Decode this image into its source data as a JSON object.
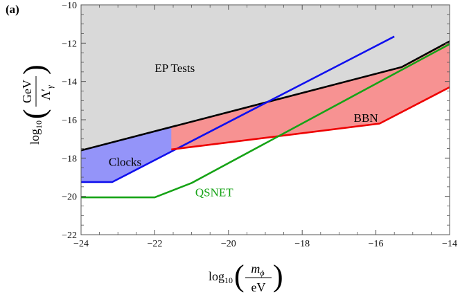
{
  "chart_data": {
    "type": "area",
    "panel_label": "(a)",
    "xlim": [
      -24,
      -14
    ],
    "ylim": [
      -22,
      -10
    ],
    "x_ticks": [
      -24,
      -22,
      -20,
      -18,
      -16,
      -14
    ],
    "x_tick_labels": [
      "−24",
      "−22",
      "−20",
      "−18",
      "−16",
      "−14"
    ],
    "y_ticks": [
      -22,
      -20,
      -18,
      -16,
      -14,
      -12,
      -10
    ],
    "y_tick_labels": [
      "−22",
      "−20",
      "−18",
      "−16",
      "−14",
      "−12",
      "−10"
    ],
    "xlabel": {
      "prefix": "log",
      "sub": "10",
      "numerator": "m",
      "numerator_sub": "ϕ",
      "denominator": "eV"
    },
    "ylabel": {
      "prefix": "log",
      "sub": "10",
      "numerator": "GeV",
      "denominator": "Λ′",
      "denominator_sub": "γ"
    },
    "regions": [
      {
        "name": "EP Tests",
        "fill": "#d9d9d9",
        "points": [
          [
            -24,
            -17.6
          ],
          [
            -15.3,
            -13.25
          ],
          [
            -14,
            -11.9
          ],
          [
            -14,
            -10
          ],
          [
            -24,
            -10
          ]
        ]
      },
      {
        "name": "Clocks",
        "fill": "#9494f9",
        "points": [
          [
            -24,
            -17.6
          ],
          [
            -21.55,
            -16.4
          ],
          [
            -19.0,
            -15.15
          ],
          [
            -23.15,
            -19.25
          ],
          [
            -24,
            -19.25
          ]
        ]
      },
      {
        "name": "BBN",
        "fill": "#f79292",
        "points": [
          [
            -21.55,
            -17.55
          ],
          [
            -21.55,
            -16.4
          ],
          [
            -19.0,
            -15.15
          ],
          [
            -15.3,
            -13.25
          ],
          [
            -14,
            -11.9
          ],
          [
            -14,
            -14.3
          ],
          [
            -15.9,
            -16.2
          ]
        ]
      }
    ],
    "series": [
      {
        "name": "EP Tests",
        "color": "#000000",
        "x": [
          -24,
          -15.3,
          -14
        ],
        "y": [
          -17.6,
          -13.25,
          -11.9
        ]
      },
      {
        "name": "Clocks",
        "color": "#1010ee",
        "x": [
          -24,
          -23.15,
          -15.5
        ],
        "y": [
          -19.25,
          -19.25,
          -11.65
        ]
      },
      {
        "name": "BBN",
        "color": "#ee0000",
        "x": [
          -21.55,
          -15.9,
          -14
        ],
        "y": [
          -17.55,
          -16.2,
          -14.3
        ]
      },
      {
        "name": "QSNET",
        "color": "#16a316",
        "x": [
          -24,
          -22,
          -21,
          -14
        ],
        "y": [
          -20.05,
          -20.05,
          -19.3,
          -12.05
        ]
      }
    ],
    "annotations": [
      {
        "text": "EP Tests",
        "x": -22.0,
        "y": -13.5,
        "color": "#000000"
      },
      {
        "text": "Clocks",
        "x": -23.25,
        "y": -18.4,
        "color": "#000000"
      },
      {
        "text": "BBN",
        "x": -16.6,
        "y": -16.1,
        "color": "#000000"
      },
      {
        "text": "QSNET",
        "x": -20.9,
        "y": -20.0,
        "color": "#16a316"
      }
    ]
  }
}
